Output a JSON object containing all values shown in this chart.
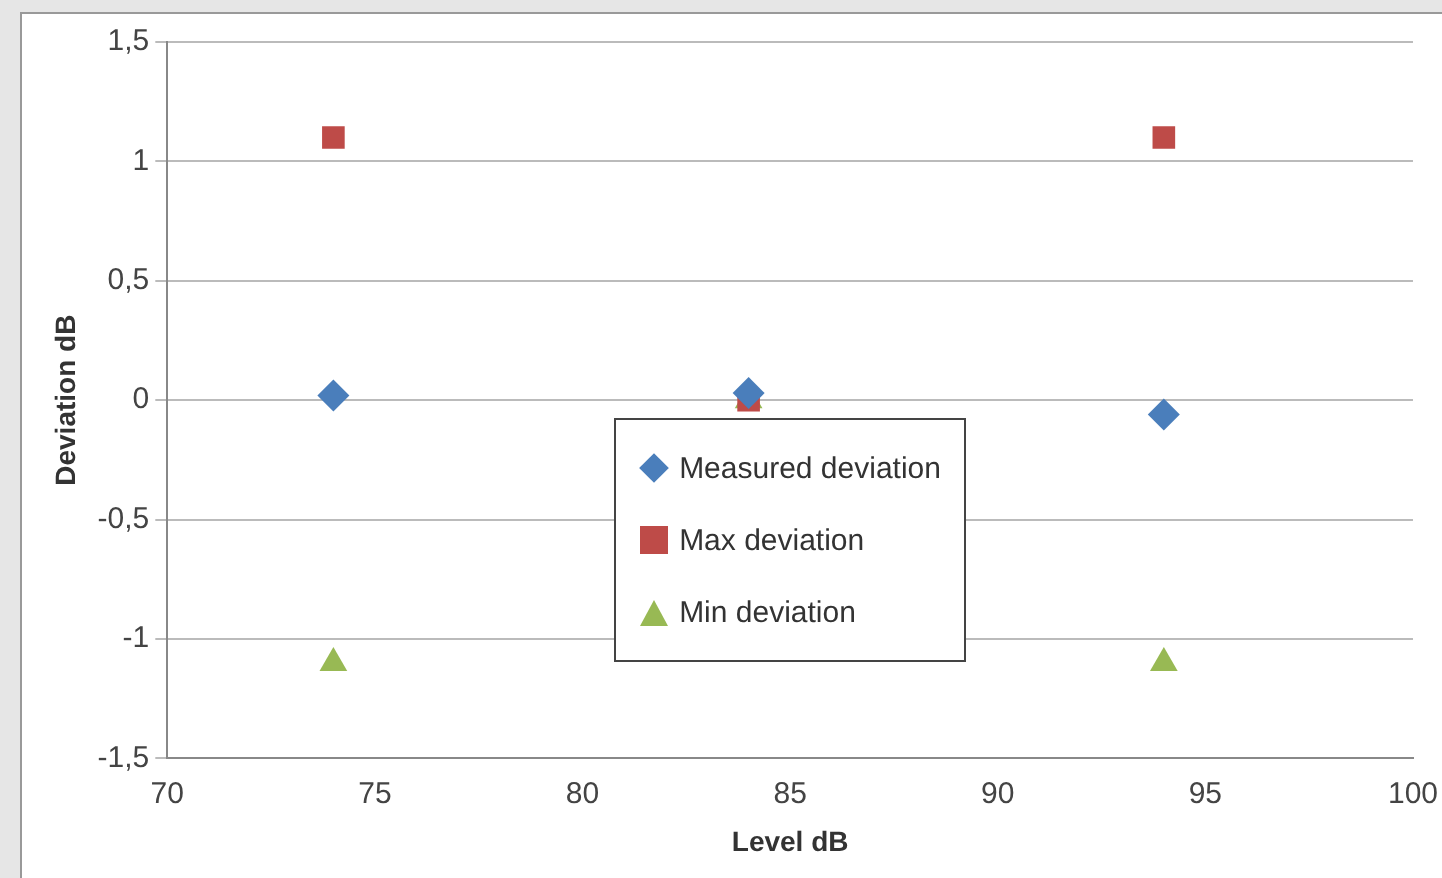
{
  "chart_data": {
    "type": "scatter",
    "xlabel": "Level dB",
    "ylabel": "Deviation dB",
    "xlim": [
      70,
      100
    ],
    "xticks": [
      70,
      75,
      80,
      85,
      90,
      95,
      100
    ],
    "ylim": [
      -1.5,
      1.5
    ],
    "yticks": [
      {
        "value": -1.5,
        "label": "-1,5"
      },
      -1,
      {
        "value": -0.5,
        "label": "-0,5"
      },
      0,
      {
        "value": 0.5,
        "label": "0,5"
      },
      1,
      {
        "value": 1.5,
        "label": "1,5"
      }
    ],
    "grid": "y",
    "legend": "bottom",
    "x": [
      74,
      84,
      94
    ],
    "series": [
      {
        "name": "Measured deviation",
        "color": "#4a7ebb",
        "marker": "diamond",
        "values": [
          0.02,
          0.03,
          -0.06
        ]
      },
      {
        "name": "Max deviation",
        "color": "#be4b48",
        "marker": "square",
        "values": [
          1.1,
          0,
          1.1
        ]
      },
      {
        "name": "Min deviation",
        "color": "#98b954",
        "marker": "triangle",
        "values": [
          -1.1,
          0,
          -1.1
        ]
      }
    ]
  }
}
